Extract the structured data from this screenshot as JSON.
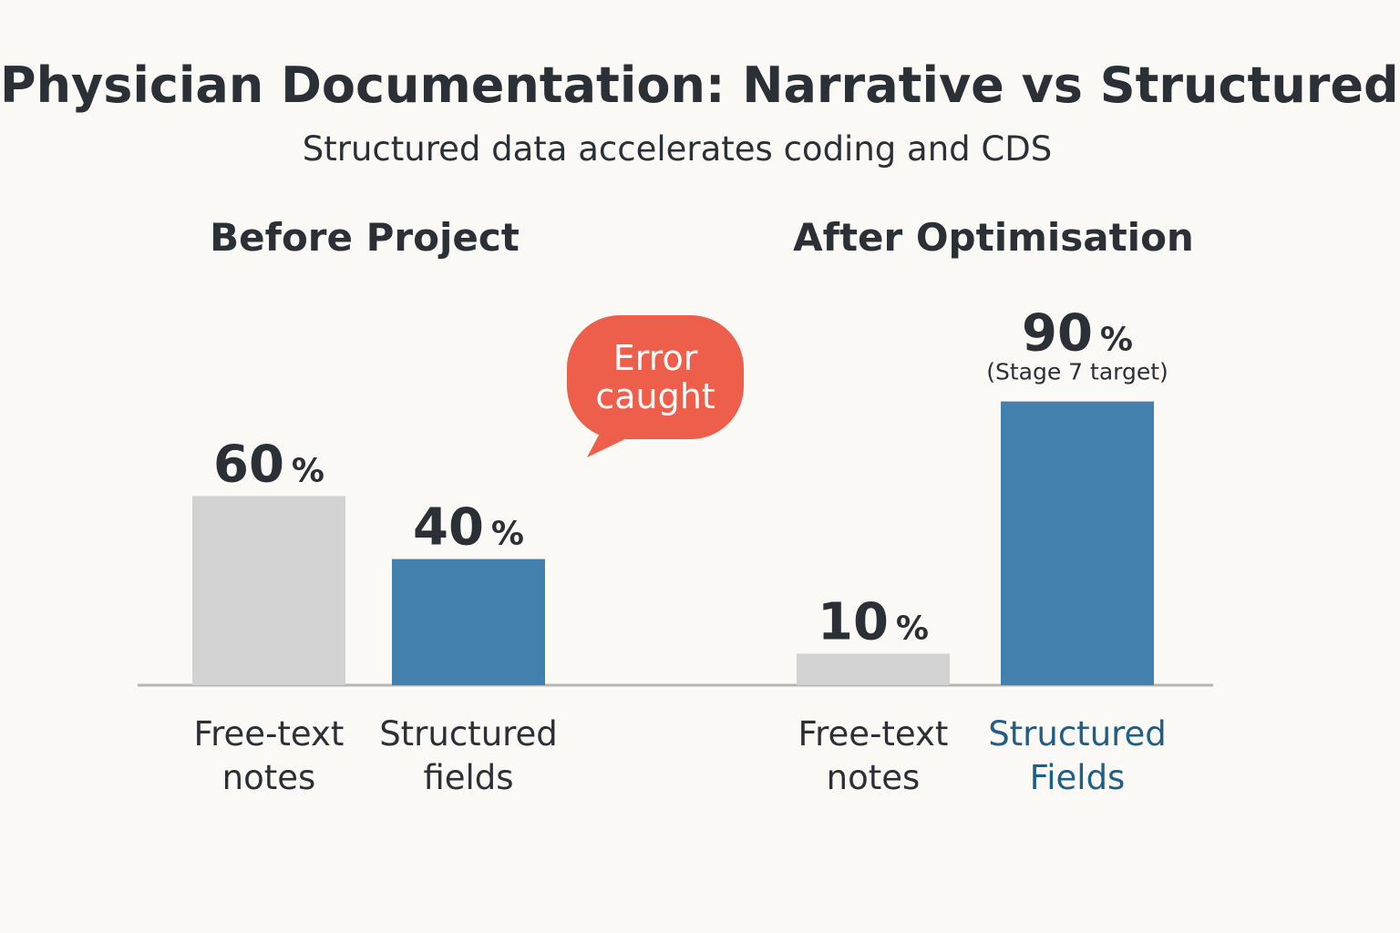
{
  "title": "Physician Documentation: Narrative vs Structured",
  "subtitle": "Structured data accelerates coding and CDS",
  "colors": {
    "free_text": "#d2d2d2",
    "structured": "#4480ad",
    "callout": "#ee5f4b",
    "baseline": "#b5b5b5",
    "highlight_label": "#1f5f86"
  },
  "chart_data": {
    "type": "bar",
    "unit": "%",
    "ylim": [
      0,
      100
    ],
    "grid": false,
    "groups": [
      {
        "name": "Before Project",
        "bars": [
          {
            "category": [
              "Free-text",
              "notes"
            ],
            "value": 60,
            "series": "free_text"
          },
          {
            "category": [
              "Structured",
              "fields"
            ],
            "value": 40,
            "series": "structured"
          }
        ]
      },
      {
        "name": "After Optimisation",
        "bars": [
          {
            "category": [
              "Free-text",
              "notes"
            ],
            "value": 10,
            "series": "free_text"
          },
          {
            "category": [
              "Structured",
              "Fields"
            ],
            "value": 90,
            "series": "structured",
            "note": "(Stage 7 target)",
            "highlight": true
          }
        ]
      }
    ],
    "annotations": [
      {
        "text": [
          "Error",
          "caught"
        ],
        "group": 0,
        "style": "speech-bubble"
      }
    ]
  }
}
